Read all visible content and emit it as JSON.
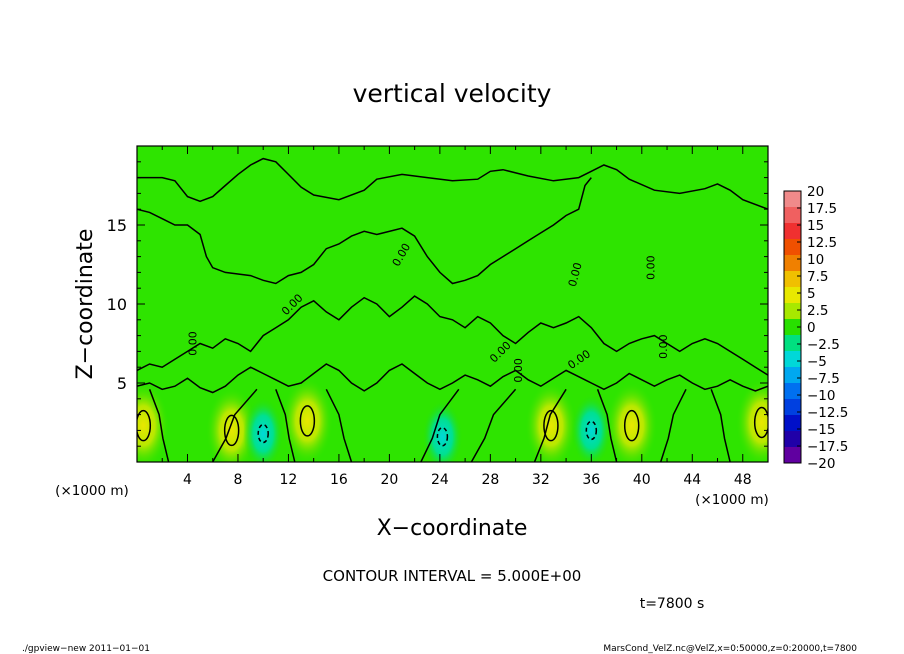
{
  "chart_data": {
    "type": "heatmap",
    "title": "vertical velocity",
    "xlabel": "X−coordinate",
    "ylabel": "Z−coordinate",
    "x_unit": "(×1000 m)",
    "z_unit": "(×1000 m)",
    "xlim": [
      0,
      50
    ],
    "ylim": [
      0,
      20
    ],
    "x_ticks": [
      4,
      8,
      12,
      16,
      20,
      24,
      28,
      32,
      36,
      40,
      44,
      48
    ],
    "x_tick_labels": [
      "4",
      "8",
      "12",
      "16",
      "20",
      "24",
      "28",
      "32",
      "36",
      "40",
      "44",
      "48"
    ],
    "y_ticks": [
      5,
      10,
      15
    ],
    "y_tick_labels": [
      "5",
      "10",
      "15"
    ],
    "contour_label": "0.00",
    "contour_interval_text": "CONTOUR INTERVAL = 5.000E+00",
    "time_text": "t=7800 s",
    "footer_left": "./gpview−new  2011−01−01",
    "footer_right": "MarsCond_VelZ.nc@VelZ,x=0:50000,z=0:20000,t=7800",
    "colorbar": {
      "levels": [
        20,
        17.5,
        15,
        12.5,
        10,
        7.5,
        5,
        2.5,
        0,
        -2.5,
        -5,
        -7.5,
        -10,
        -12.5,
        -15,
        -17.5,
        -20
      ],
      "labels": [
        "20",
        "17.5",
        "15",
        "12.5",
        "10",
        "7.5",
        "5",
        "2.5",
        "0",
        "−2.5",
        "−5",
        "−7.5",
        "−10",
        "−12.5",
        "−15",
        "−17.5",
        "−20"
      ],
      "colors": [
        "#f08a8a",
        "#f06060",
        "#f03030",
        "#f05000",
        "#f08000",
        "#f0c000",
        "#e8e800",
        "#a8e800",
        "#28e000",
        "#00e080",
        "#00d8d8",
        "#00a8f0",
        "#0070f0",
        "#0040e0",
        "#0010c8",
        "#2000a8",
        "#6000a0"
      ]
    },
    "updraft_cores": [
      {
        "x": 0.5,
        "z": 2.3
      },
      {
        "x": 7.5,
        "z": 2.0
      },
      {
        "x": 13.5,
        "z": 2.6
      },
      {
        "x": 32.8,
        "z": 2.3
      },
      {
        "x": 39.2,
        "z": 2.3
      },
      {
        "x": 49.5,
        "z": 2.5
      }
    ],
    "downdraft_cores": [
      {
        "x": 10.0,
        "z": 1.8
      },
      {
        "x": 24.2,
        "z": 1.6
      },
      {
        "x": 36.0,
        "z": 2.0
      }
    ],
    "upper_contour": [
      [
        0,
        18
      ],
      [
        2,
        18
      ],
      [
        3,
        17.8
      ],
      [
        4,
        16.8
      ],
      [
        5,
        16.5
      ],
      [
        6,
        16.8
      ],
      [
        7,
        17.5
      ],
      [
        8,
        18.2
      ],
      [
        9,
        18.8
      ],
      [
        10,
        19.2
      ],
      [
        11,
        19.0
      ],
      [
        12,
        18.2
      ],
      [
        13,
        17.4
      ],
      [
        14,
        16.9
      ],
      [
        16,
        16.6
      ],
      [
        18,
        17.2
      ],
      [
        19,
        17.9
      ],
      [
        21,
        18.2
      ],
      [
        23,
        18.0
      ],
      [
        25,
        17.8
      ],
      [
        27,
        17.9
      ],
      [
        28,
        18.4
      ],
      [
        29,
        18.5
      ],
      [
        31,
        18.1
      ],
      [
        33,
        17.8
      ],
      [
        35,
        18.0
      ],
      [
        36,
        18.4
      ],
      [
        37,
        18.8
      ],
      [
        38,
        18.5
      ],
      [
        39,
        17.9
      ],
      [
        41,
        17.2
      ],
      [
        43,
        17.0
      ],
      [
        45,
        17.3
      ],
      [
        46,
        17.6
      ],
      [
        47,
        17.2
      ],
      [
        48,
        16.6
      ],
      [
        50,
        16.0
      ]
    ],
    "top_boundary_contour": [
      [
        0,
        16.0
      ],
      [
        1,
        15.8
      ],
      [
        2,
        15.4
      ],
      [
        3,
        15.0
      ],
      [
        4,
        15.0
      ],
      [
        5,
        14.4
      ],
      [
        5.5,
        13.0
      ],
      [
        6,
        12.3
      ],
      [
        7,
        12.0
      ],
      [
        9,
        11.8
      ],
      [
        10,
        11.5
      ],
      [
        11,
        11.3
      ],
      [
        12,
        11.8
      ],
      [
        13,
        12.0
      ],
      [
        14,
        12.5
      ],
      [
        15,
        13.5
      ],
      [
        16,
        13.8
      ],
      [
        17,
        14.3
      ],
      [
        18,
        14.6
      ],
      [
        19,
        14.4
      ],
      [
        21,
        14.8
      ],
      [
        22,
        14.3
      ],
      [
        23,
        13.0
      ],
      [
        24,
        12.0
      ],
      [
        25,
        11.3
      ],
      [
        26,
        11.5
      ],
      [
        27,
        11.8
      ],
      [
        28,
        12.5
      ],
      [
        29,
        13.0
      ],
      [
        30,
        13.5
      ],
      [
        31,
        14.0
      ],
      [
        32,
        14.5
      ],
      [
        33,
        15.0
      ],
      [
        34,
        15.6
      ],
      [
        35,
        16.0
      ],
      [
        35.5,
        17.5
      ],
      [
        36,
        18.0
      ]
    ],
    "mid_contour": [
      [
        0,
        5.8
      ],
      [
        1,
        6.2
      ],
      [
        2,
        6.0
      ],
      [
        3,
        6.5
      ],
      [
        4,
        7.0
      ],
      [
        5,
        7.5
      ],
      [
        6,
        7.2
      ],
      [
        7,
        7.8
      ],
      [
        8,
        7.5
      ],
      [
        9,
        7.0
      ],
      [
        10,
        8.0
      ],
      [
        11,
        8.5
      ],
      [
        12,
        9.0
      ],
      [
        13,
        9.8
      ],
      [
        14,
        10.2
      ],
      [
        15,
        9.5
      ],
      [
        16,
        9.0
      ],
      [
        17,
        9.8
      ],
      [
        18,
        10.4
      ],
      [
        19,
        10.0
      ],
      [
        20,
        9.2
      ],
      [
        21,
        9.8
      ],
      [
        22,
        10.5
      ],
      [
        23,
        10.0
      ],
      [
        24,
        9.2
      ],
      [
        25,
        9.0
      ],
      [
        26,
        8.5
      ],
      [
        27,
        9.2
      ],
      [
        28,
        8.8
      ],
      [
        29,
        8.0
      ],
      [
        30,
        7.5
      ],
      [
        31,
        8.2
      ],
      [
        32,
        8.8
      ],
      [
        33,
        8.5
      ],
      [
        34,
        8.8
      ],
      [
        35,
        9.2
      ],
      [
        36,
        8.5
      ],
      [
        37,
        7.5
      ],
      [
        38,
        7.0
      ],
      [
        39,
        7.5
      ],
      [
        40,
        7.8
      ],
      [
        41,
        8.0
      ],
      [
        42,
        7.5
      ],
      [
        43,
        7.0
      ],
      [
        44,
        7.5
      ],
      [
        45,
        7.8
      ],
      [
        46,
        7.5
      ],
      [
        47,
        7.0
      ],
      [
        48,
        6.5
      ],
      [
        49,
        6.0
      ],
      [
        50,
        5.5
      ]
    ],
    "low_contour": [
      [
        0,
        4.8
      ],
      [
        1,
        5.0
      ],
      [
        2,
        4.6
      ],
      [
        3,
        4.8
      ],
      [
        4,
        5.3
      ],
      [
        5,
        4.7
      ],
      [
        6,
        4.4
      ],
      [
        7,
        4.8
      ],
      [
        8,
        5.5
      ],
      [
        9,
        6.0
      ],
      [
        10,
        5.6
      ],
      [
        11,
        5.2
      ],
      [
        12,
        4.8
      ],
      [
        13,
        5.0
      ],
      [
        14,
        5.6
      ],
      [
        15,
        6.2
      ],
      [
        16,
        5.8
      ],
      [
        17,
        5.0
      ],
      [
        18,
        4.5
      ],
      [
        19,
        5.0
      ],
      [
        20,
        5.8
      ],
      [
        21,
        6.2
      ],
      [
        22,
        5.6
      ],
      [
        23,
        5.0
      ],
      [
        24,
        4.6
      ],
      [
        25,
        5.0
      ],
      [
        26,
        5.5
      ],
      [
        27,
        5.2
      ],
      [
        28,
        4.8
      ],
      [
        29,
        5.4
      ],
      [
        30,
        5.8
      ],
      [
        31,
        5.2
      ],
      [
        32,
        4.8
      ],
      [
        33,
        5.3
      ],
      [
        34,
        5.8
      ],
      [
        35,
        5.4
      ],
      [
        36,
        5.0
      ],
      [
        37,
        4.6
      ],
      [
        38,
        5.0
      ],
      [
        39,
        5.6
      ],
      [
        40,
        5.2
      ],
      [
        41,
        4.8
      ],
      [
        42,
        5.2
      ],
      [
        43,
        5.5
      ],
      [
        44,
        5.0
      ],
      [
        45,
        4.6
      ],
      [
        46,
        4.8
      ],
      [
        47,
        5.2
      ],
      [
        48,
        4.8
      ],
      [
        49,
        4.5
      ],
      [
        50,
        4.8
      ]
    ],
    "column_contours": [
      {
        "x0": 2.5,
        "x1": 1.0
      },
      {
        "x0": 6.0,
        "x1": 9.5
      },
      {
        "x0": 12.5,
        "x1": 11.0
      },
      {
        "x0": 17.0,
        "x1": 15.0
      },
      {
        "x0": 22.5,
        "x1": 25.5
      },
      {
        "x0": 26.5,
        "x1": 30.0
      },
      {
        "x0": 31.5,
        "x1": 34.0
      },
      {
        "x0": 38.0,
        "x1": 36.5
      },
      {
        "x0": 41.5,
        "x1": 43.5
      },
      {
        "x0": 47.0,
        "x1": 45.5
      }
    ],
    "contour_label_positions": [
      {
        "x": 4.7,
        "z": 7.5,
        "angle": -90
      },
      {
        "x": 12.5,
        "z": 9.8,
        "angle": -45
      },
      {
        "x": 21.2,
        "z": 13.0,
        "angle": -60
      },
      {
        "x": 29.0,
        "z": 6.8,
        "angle": -45
      },
      {
        "x": 35.2,
        "z": 6.3,
        "angle": -35
      },
      {
        "x": 35.0,
        "z": 11.8,
        "angle": -75
      },
      {
        "x": 41.0,
        "z": 12.3,
        "angle": -90
      },
      {
        "x": 42.0,
        "z": 7.3,
        "angle": -90
      },
      {
        "x": 30.5,
        "z": 5.8,
        "angle": -90
      }
    ]
  }
}
